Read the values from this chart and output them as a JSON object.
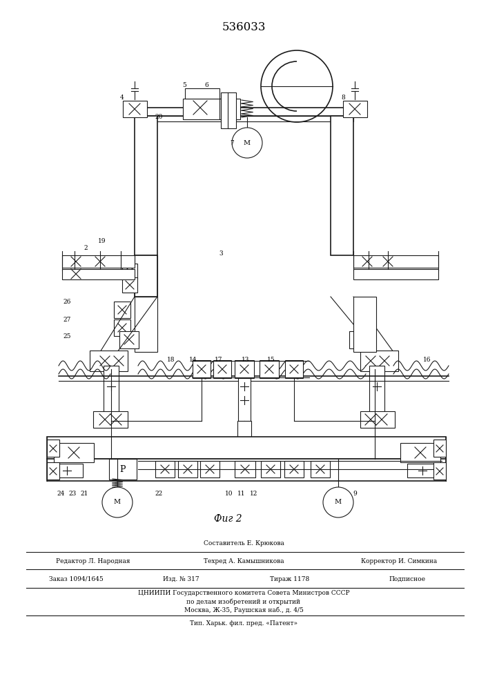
{
  "title": "536033",
  "fig_label": "Фиг 2",
  "background_color": "#ffffff",
  "line_color": "#1a1a1a",
  "compositor": "Составитель Е. Крюкова",
  "editor": "Редактор Л. Народная",
  "techred": "Техред А. Камышникова",
  "corrector": "Корректор И. Симкина",
  "order": "Заказ 1094/1645",
  "izdanie": "Изд. № 317",
  "tirazh": "Тираж 1178",
  "podpisnoe": "Подписное",
  "tsniipi_line1": "ЦНИИПИ Государственного комитета Совета Министров СССР",
  "tsniipi_line2": "по делам изобретений и открытий",
  "tsniipi_line3": "Москва, Ж-35, Раушская наб., д. 4/5",
  "tip": "Тип. Харьк. фил. пред. «Патент»"
}
